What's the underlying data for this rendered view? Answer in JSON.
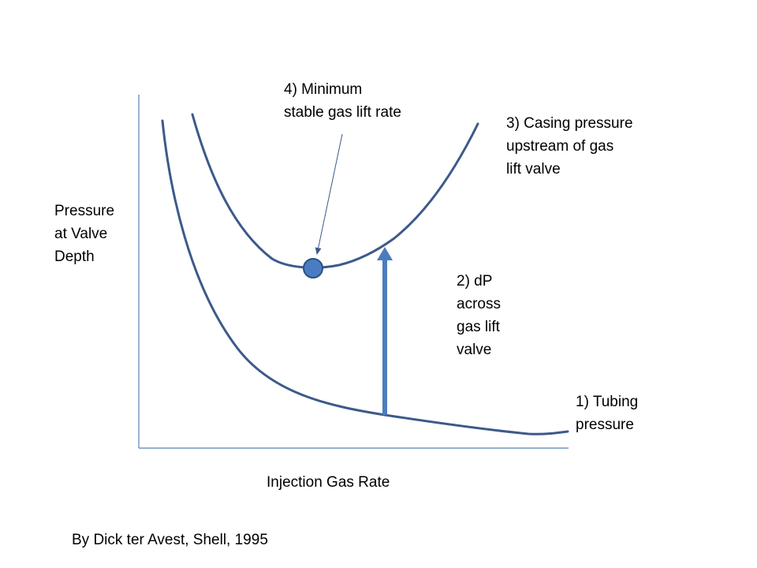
{
  "axes": {
    "y_label_lines": [
      "Pressure",
      "at Valve",
      "Depth"
    ],
    "x_label": "Injection Gas Rate"
  },
  "curves": {
    "tubing": {
      "label_lines": [
        "1) Tubing",
        "pressure"
      ]
    },
    "casing": {
      "label_lines": [
        "3) Casing pressure",
        "upstream of gas",
        "lift valve"
      ]
    }
  },
  "dp_arrow": {
    "label_lines": [
      "2) dP",
      "across",
      "gas lift",
      "valve"
    ]
  },
  "minimum_point": {
    "label_lines": [
      "4) Minimum",
      "stable gas lift rate"
    ]
  },
  "credit": "By Dick ter Avest, Shell, 1995",
  "colors": {
    "curve": "#3C5A8A",
    "axis": "#5B7FB2",
    "arrow": "#4A7CBF",
    "point_fill": "#4A7CC4",
    "point_stroke": "#2F4F80"
  }
}
